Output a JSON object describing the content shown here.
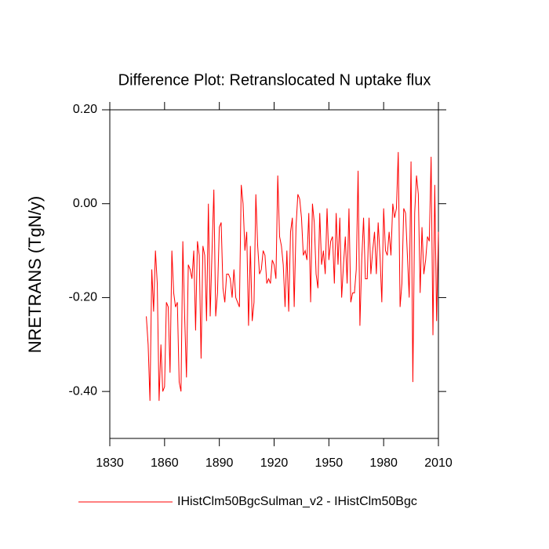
{
  "chart_data": {
    "type": "line",
    "title": "Difference Plot: Retranslocated N uptake flux",
    "y_label": "NRETRANS  (TgN/y)",
    "x": [
      1850,
      1851,
      1852,
      1853,
      1854,
      1855,
      1856,
      1857,
      1858,
      1859,
      1860,
      1861,
      1862,
      1863,
      1864,
      1865,
      1866,
      1867,
      1868,
      1869,
      1870,
      1871,
      1872,
      1873,
      1874,
      1875,
      1876,
      1877,
      1878,
      1879,
      1880,
      1881,
      1882,
      1883,
      1884,
      1885,
      1886,
      1887,
      1888,
      1889,
      1890,
      1891,
      1892,
      1893,
      1894,
      1895,
      1896,
      1897,
      1898,
      1899,
      1900,
      1901,
      1902,
      1903,
      1904,
      1905,
      1906,
      1907,
      1908,
      1909,
      1910,
      1911,
      1912,
      1913,
      1914,
      1915,
      1916,
      1917,
      1918,
      1919,
      1920,
      1921,
      1922,
      1923,
      1924,
      1925,
      1926,
      1927,
      1928,
      1929,
      1930,
      1931,
      1932,
      1933,
      1934,
      1935,
      1936,
      1937,
      1938,
      1939,
      1940,
      1941,
      1942,
      1943,
      1944,
      1945,
      1946,
      1947,
      1948,
      1949,
      1950,
      1951,
      1952,
      1953,
      1954,
      1955,
      1956,
      1957,
      1958,
      1959,
      1960,
      1961,
      1962,
      1963,
      1964,
      1965,
      1966,
      1967,
      1968,
      1969,
      1970,
      1971,
      1972,
      1973,
      1974,
      1975,
      1976,
      1977,
      1978,
      1979,
      1980,
      1981,
      1982,
      1983,
      1984,
      1985,
      1986,
      1987,
      1988,
      1989,
      1990,
      1991,
      1992,
      1993,
      1994,
      1995,
      1996,
      1997,
      1998,
      1999,
      2000,
      2001,
      2002,
      2003,
      2004,
      2005,
      2006,
      2007,
      2008,
      2009,
      2010
    ],
    "series": [
      {
        "name": "IHistClm50BgcSulman_v2 - IHistClm50Bgc",
        "color": "#ff0000",
        "values": [
          -0.24,
          -0.3,
          -0.42,
          -0.14,
          -0.23,
          -0.1,
          -0.17,
          -0.42,
          -0.3,
          -0.4,
          -0.39,
          -0.21,
          -0.22,
          -0.36,
          -0.1,
          -0.19,
          -0.22,
          -0.21,
          -0.38,
          -0.4,
          -0.08,
          -0.24,
          -0.37,
          -0.13,
          -0.14,
          -0.16,
          -0.1,
          -0.27,
          -0.08,
          -0.11,
          -0.33,
          -0.09,
          -0.11,
          -0.25,
          0.0,
          -0.24,
          -0.1,
          0.03,
          -0.24,
          -0.19,
          -0.05,
          -0.04,
          -0.18,
          -0.21,
          -0.15,
          -0.15,
          -0.16,
          -0.2,
          -0.14,
          -0.2,
          -0.21,
          -0.22,
          0.04,
          0.0,
          -0.1,
          -0.06,
          -0.26,
          -0.09,
          -0.25,
          -0.21,
          0.02,
          -0.09,
          -0.15,
          -0.14,
          -0.1,
          -0.11,
          -0.17,
          -0.16,
          -0.17,
          -0.12,
          -0.13,
          -0.16,
          0.06,
          -0.07,
          -0.09,
          -0.13,
          -0.22,
          -0.1,
          -0.23,
          -0.06,
          -0.03,
          -0.22,
          -0.05,
          0.02,
          0.01,
          -0.03,
          -0.11,
          -0.1,
          -0.12,
          -0.02,
          -0.21,
          0.0,
          -0.04,
          -0.15,
          -0.18,
          -0.02,
          -0.13,
          -0.1,
          -0.15,
          -0.01,
          -0.12,
          -0.08,
          -0.07,
          -0.17,
          -0.02,
          -0.13,
          -0.03,
          -0.2,
          -0.13,
          -0.07,
          -0.17,
          -0.01,
          -0.21,
          -0.19,
          -0.19,
          -0.14,
          0.07,
          -0.26,
          -0.12,
          -0.03,
          -0.16,
          -0.16,
          -0.03,
          -0.15,
          -0.1,
          -0.06,
          -0.15,
          -0.04,
          -0.11,
          -0.21,
          -0.01,
          -0.1,
          -0.11,
          -0.06,
          -0.11,
          0.0,
          -0.03,
          -0.01,
          0.11,
          -0.22,
          -0.17,
          -0.01,
          -0.02,
          -0.11,
          -0.2,
          0.09,
          -0.38,
          -0.02,
          0.06,
          0.02,
          -0.19,
          -0.05,
          -0.15,
          -0.12,
          -0.07,
          -0.08,
          0.1,
          -0.28,
          0.04,
          -0.25,
          -0.06
        ]
      }
    ],
    "xlim": [
      1830,
      2010
    ],
    "xticks": [
      1830,
      1860,
      1890,
      1920,
      1950,
      1980,
      2010
    ],
    "ylim": [
      -0.5,
      0.2
    ],
    "yticks": [
      {
        "value": 0.2,
        "label": "0.20"
      },
      {
        "value": 0,
        "label": "0.00"
      },
      {
        "value": -0.2,
        "label": "-0.20"
      },
      {
        "value": -0.4,
        "label": "-0.40"
      }
    ]
  }
}
